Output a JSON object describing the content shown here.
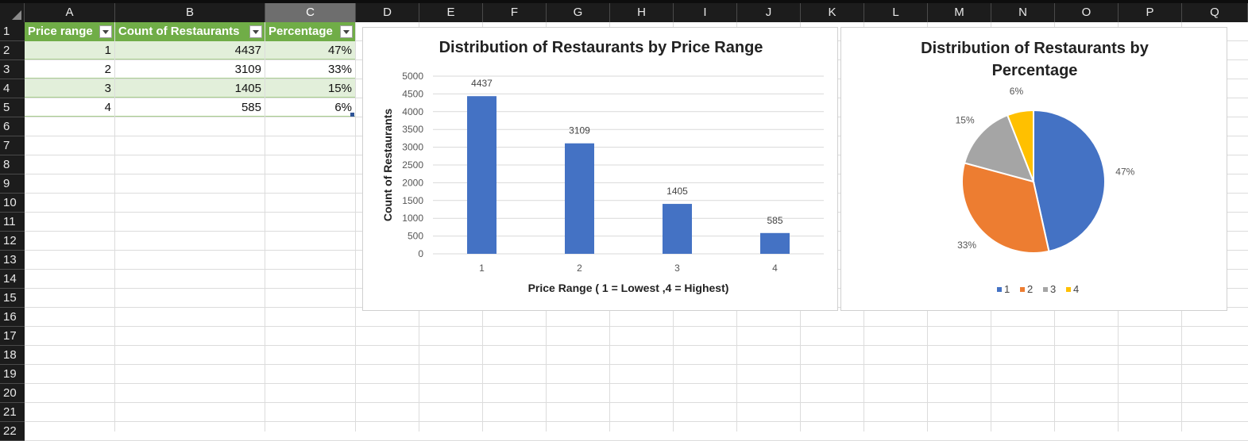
{
  "columns": [
    "A",
    "B",
    "C",
    "D",
    "E",
    "F",
    "G",
    "H",
    "I",
    "J",
    "K",
    "L",
    "M",
    "N",
    "O",
    "P",
    "Q"
  ],
  "rows": [
    "1",
    "2",
    "3",
    "4",
    "5",
    "6",
    "7",
    "8",
    "9",
    "10",
    "11",
    "12",
    "13",
    "14",
    "15",
    "16",
    "17",
    "18",
    "19",
    "20",
    "21",
    "22"
  ],
  "table": {
    "headers": [
      "Price range",
      "Count of Restaurants",
      "Percentage"
    ],
    "rows": [
      [
        "1",
        "4437",
        "47%"
      ],
      [
        "2",
        "3109",
        "33%"
      ],
      [
        "3",
        "1405",
        "15%"
      ],
      [
        "4",
        "585",
        "6%"
      ]
    ]
  },
  "chart_data": [
    {
      "type": "bar",
      "title": "Distribution of Restaurants by Price Range",
      "xlabel": "Price Range ( 1 = Lowest ,4 = Highest)",
      "ylabel": "Count of Restaurants",
      "categories": [
        "1",
        "2",
        "3",
        "4"
      ],
      "values": [
        4437,
        3109,
        1405,
        585
      ],
      "data_labels": [
        "4437",
        "3109",
        "1405",
        "585"
      ],
      "ylim": [
        0,
        5000
      ],
      "yticks": [
        "0",
        "500",
        "1000",
        "1500",
        "2000",
        "2500",
        "3000",
        "3500",
        "4000",
        "4500",
        "5000"
      ],
      "grid": true,
      "color": "#4472c4"
    },
    {
      "type": "pie",
      "title": "Distribution of Restaurants by Percentage",
      "labels": [
        "1",
        "2",
        "3",
        "4"
      ],
      "values": [
        47,
        33,
        15,
        6
      ],
      "data_labels": [
        "47%",
        "33%",
        "15%",
        "6%"
      ],
      "colors": [
        "#4472c4",
        "#ed7d31",
        "#a5a5a5",
        "#ffc000"
      ],
      "legend": "bottom"
    }
  ]
}
